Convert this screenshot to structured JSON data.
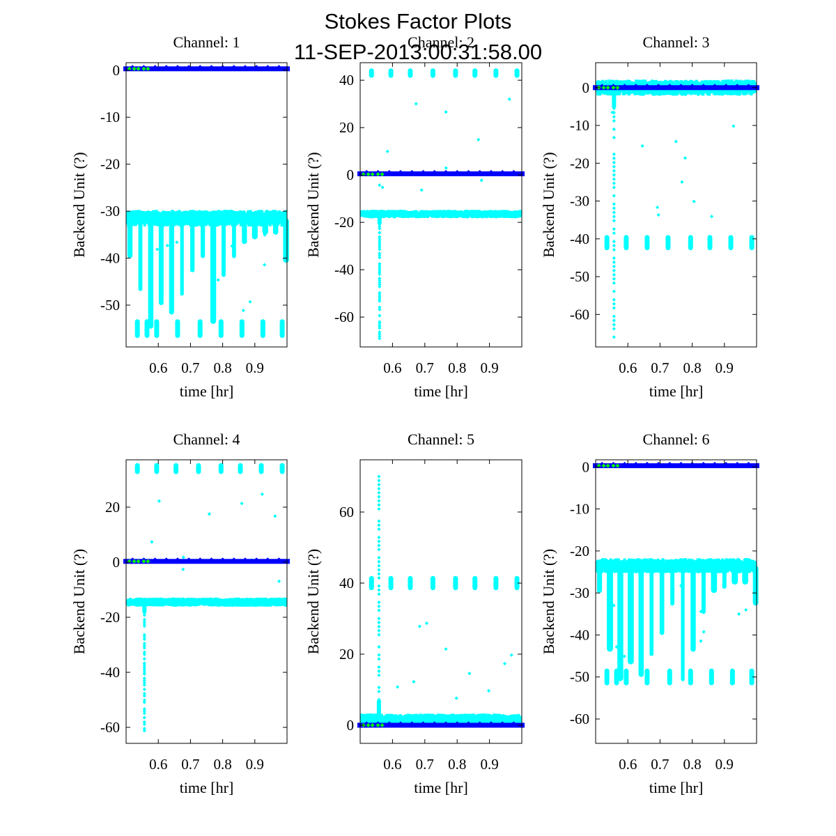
{
  "chart_data": {
    "type": "scatter",
    "title": "Stokes Factor Plots",
    "subtitle": "11-SEP-2013:00:31:58.00",
    "colors": {
      "cyan": "#00ffff",
      "blue": "#0000ff",
      "green": "#00ff00",
      "axis": "#000000"
    },
    "panels": [
      {
        "title": "Channel: 1",
        "xlabel": "time [hr]",
        "ylabel": "Backend Unit (?)",
        "xlim": [
          0.5,
          1.0
        ],
        "ylim": [
          -58.9,
          1.6
        ],
        "xticks": [
          "0.6",
          "0.7",
          "0.8",
          "0.9"
        ],
        "xtick_values": [
          0.6,
          0.7,
          0.8,
          0.9
        ],
        "yticks": [
          "0",
          "-10",
          "-20",
          "-30",
          "-40",
          "-50"
        ],
        "ytick_values": [
          0,
          -10,
          -20,
          -30,
          -40,
          -50
        ],
        "series": [
          {
            "name": "cyan",
            "color": "#00ffff",
            "kind": "band_with_dips",
            "center": -31.5,
            "spread": 1.5,
            "dip_min": [
              -40,
              -47,
              -55,
              -50,
              -52,
              -48,
              -43,
              -40,
              -54,
              -44,
              -40,
              -37,
              -36,
              -35,
              -35,
              -41
            ],
            "clusters": {
              "level": -55,
              "x": [
                0.535,
                0.565,
                0.595,
                0.66,
                0.73,
                0.795,
                0.86,
                0.925,
                0.985
              ]
            }
          },
          {
            "name": "blue",
            "color": "#0000ff",
            "kind": "line",
            "level": 0.3
          },
          {
            "name": "green",
            "color": "#00ff00",
            "kind": "points",
            "x": [
              0.51,
              0.525,
              0.538,
              0.555,
              0.568
            ],
            "y": [
              0.3,
              0.3,
              0.3,
              0.3,
              0.3
            ]
          }
        ]
      },
      {
        "title": "Channel: 2",
        "xlabel": "time [hr]",
        "ylabel": "Backend Unit (?)",
        "xlim": [
          0.5,
          1.0
        ],
        "ylim": [
          -72.6,
          47.4
        ],
        "xticks": [
          "0.6",
          "0.7",
          "0.8",
          "0.9"
        ],
        "xtick_values": [
          0.6,
          0.7,
          0.8,
          0.9
        ],
        "yticks": [
          "40",
          "20",
          "0",
          "-20",
          "-40",
          "-60"
        ],
        "ytick_values": [
          40,
          20,
          0,
          -20,
          -40,
          -60
        ],
        "series": [
          {
            "name": "cyan",
            "color": "#00ffff",
            "kind": "band_spike",
            "center": -16.5,
            "spread": 1.5,
            "spike_x": 0.56,
            "spike_to": -69,
            "clusters": {
              "level": 43,
              "x": [
                0.535,
                0.595,
                0.655,
                0.725,
                0.795,
                0.855,
                0.92,
                0.985
              ]
            }
          },
          {
            "name": "blue",
            "color": "#0000ff",
            "kind": "line",
            "level": 0.5
          },
          {
            "name": "green",
            "color": "#00ff00",
            "kind": "points",
            "x": [
              0.51,
              0.525,
              0.538,
              0.555,
              0.568
            ],
            "y": [
              0.3,
              0.3,
              0.3,
              0.3,
              0.3
            ]
          }
        ]
      },
      {
        "title": "Channel: 3",
        "xlabel": "time [hr]",
        "ylabel": "Backend Unit (?)",
        "xlim": [
          0.5,
          1.0
        ],
        "ylim": [
          -68.6,
          6.6
        ],
        "xticks": [
          "0.6",
          "0.7",
          "0.8",
          "0.9"
        ],
        "xtick_values": [
          0.6,
          0.7,
          0.8,
          0.9
        ],
        "yticks": [
          "0",
          "-10",
          "-20",
          "-30",
          "-40",
          "-50",
          "-60"
        ],
        "ytick_values": [
          0,
          -10,
          -20,
          -30,
          -40,
          -50,
          -60
        ],
        "series": [
          {
            "name": "cyan",
            "color": "#00ffff",
            "kind": "band_spike",
            "center": 0,
            "spread": 1.8,
            "spike_x": 0.557,
            "spike_to": -66,
            "clusters": {
              "level": -41,
              "x": [
                0.535,
                0.595,
                0.66,
                0.725,
                0.795,
                0.855,
                0.92,
                0.985
              ]
            }
          },
          {
            "name": "blue",
            "color": "#0000ff",
            "kind": "line",
            "level": 0
          },
          {
            "name": "green",
            "color": "#00ff00",
            "kind": "points",
            "x": [
              0.51,
              0.525,
              0.538,
              0.555,
              0.568
            ],
            "y": [
              0,
              0,
              0,
              0,
              0
            ]
          }
        ]
      },
      {
        "title": "Channel: 4",
        "xlabel": "time [hr]",
        "ylabel": "Backend Unit (?)",
        "xlim": [
          0.5,
          1.0
        ],
        "ylim": [
          -65.8,
          37.2
        ],
        "xticks": [
          "0.6",
          "0.7",
          "0.8",
          "0.9"
        ],
        "xtick_values": [
          0.6,
          0.7,
          0.8,
          0.9
        ],
        "yticks": [
          "20",
          "0",
          "-20",
          "-40",
          "-60"
        ],
        "ytick_values": [
          20,
          0,
          -20,
          -40,
          -60
        ],
        "series": [
          {
            "name": "cyan",
            "color": "#00ffff",
            "kind": "band_spike",
            "center": -14.5,
            "spread": 1.4,
            "spike_x": 0.557,
            "spike_to": -62,
            "clusters": {
              "level": 34,
              "x": [
                0.535,
                0.595,
                0.655,
                0.725,
                0.795,
                0.855,
                0.92,
                0.985
              ]
            }
          },
          {
            "name": "blue",
            "color": "#0000ff",
            "kind": "line",
            "level": 0.3
          },
          {
            "name": "green",
            "color": "#00ff00",
            "kind": "points",
            "x": [
              0.51,
              0.525,
              0.538,
              0.555,
              0.568
            ],
            "y": [
              0.3,
              0.3,
              0.3,
              0.3,
              0.3
            ]
          }
        ]
      },
      {
        "title": "Channel: 5",
        "xlabel": "time [hr]",
        "ylabel": "Backend Unit (?)",
        "xlim": [
          0.5,
          1.0
        ],
        "ylim": [
          -5.1,
          74.7
        ],
        "xticks": [
          "0.6",
          "0.7",
          "0.8",
          "0.9"
        ],
        "xtick_values": [
          0.6,
          0.7,
          0.8,
          0.9
        ],
        "yticks": [
          "60",
          "40",
          "20",
          "0"
        ],
        "ytick_values": [
          60,
          40,
          20,
          0
        ],
        "series": [
          {
            "name": "cyan",
            "color": "#00ffff",
            "kind": "band_spike",
            "center": 1.5,
            "spread": 1.5,
            "spike_x": 0.558,
            "spike_to": 70,
            "clusters": {
              "level": 40,
              "x": [
                0.535,
                0.595,
                0.655,
                0.725,
                0.795,
                0.855,
                0.92,
                0.985
              ]
            }
          },
          {
            "name": "blue",
            "color": "#0000ff",
            "kind": "line",
            "level": 0
          },
          {
            "name": "green",
            "color": "#00ff00",
            "kind": "points",
            "x": [
              0.51,
              0.525,
              0.538,
              0.555,
              0.568
            ],
            "y": [
              0,
              0,
              0,
              0,
              0
            ]
          }
        ]
      },
      {
        "title": "Channel: 6",
        "xlabel": "time [hr]",
        "ylabel": "Backend Unit (?)",
        "xlim": [
          0.5,
          1.0
        ],
        "ylim": [
          -65.8,
          1.7
        ],
        "xticks": [
          "0.6",
          "0.7",
          "0.8",
          "0.9"
        ],
        "xtick_values": [
          0.6,
          0.7,
          0.8,
          0.9
        ],
        "yticks": [
          "0",
          "-10",
          "-20",
          "-30",
          "-40",
          "-50",
          "-60"
        ],
        "ytick_values": [
          0,
          -10,
          -20,
          -30,
          -40,
          -50,
          -60
        ],
        "series": [
          {
            "name": "cyan",
            "color": "#00ffff",
            "kind": "band_with_dips",
            "center": -23.5,
            "spread": 1.5,
            "dip_min": [
              -30,
              -44,
              -51,
              -47,
              -50,
              -45,
              -40,
              -33,
              -51,
              -44,
              -35,
              -30,
              -29,
              -28,
              -28,
              -33
            ],
            "clusters": {
              "level": -50,
              "x": [
                0.535,
                0.565,
                0.595,
                0.66,
                0.73,
                0.795,
                0.86,
                0.925,
                0.985
              ]
            }
          },
          {
            "name": "blue",
            "color": "#0000ff",
            "kind": "line",
            "level": 0.3
          },
          {
            "name": "green",
            "color": "#00ff00",
            "kind": "points",
            "x": [
              0.51,
              0.525,
              0.538,
              0.555,
              0.568
            ],
            "y": [
              0.3,
              0.3,
              0.3,
              0.3,
              0.3
            ]
          }
        ]
      }
    ]
  }
}
